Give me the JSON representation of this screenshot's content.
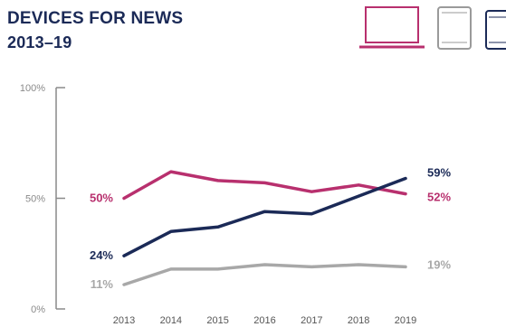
{
  "title": {
    "line1": "DEVICES FOR NEWS",
    "line2": "2013–19"
  },
  "icons": [
    {
      "name": "laptop-icon",
      "color": "#b8306e"
    },
    {
      "name": "tablet-icon",
      "color": "#9a9a9a"
    },
    {
      "name": "smartphone-icon",
      "color": "#1b2a57"
    }
  ],
  "chart_data": {
    "type": "line",
    "title": "DEVICES FOR NEWS 2013–19",
    "x": [
      "2013",
      "2014",
      "2015",
      "2016",
      "2017",
      "2018",
      "2019"
    ],
    "ylim": [
      0,
      100
    ],
    "yticks": [
      "0%",
      "50%",
      "100%"
    ],
    "grid": false,
    "series": [
      {
        "icon": "laptop-icon",
        "color": "#b8306e",
        "values": [
          50,
          62,
          58,
          57,
          53,
          56,
          52
        ],
        "start_label": "50%",
        "end_label": "52%"
      },
      {
        "icon": "smartphone-icon",
        "color": "#1b2a57",
        "values": [
          24,
          35,
          37,
          44,
          43,
          51,
          59
        ],
        "start_label": "24%",
        "end_label": "59%"
      },
      {
        "icon": "tablet-icon",
        "color": "#a8a8a8",
        "values": [
          11,
          18,
          18,
          20,
          19,
          20,
          19
        ],
        "start_label": "11%",
        "end_label": "19%"
      }
    ]
  }
}
